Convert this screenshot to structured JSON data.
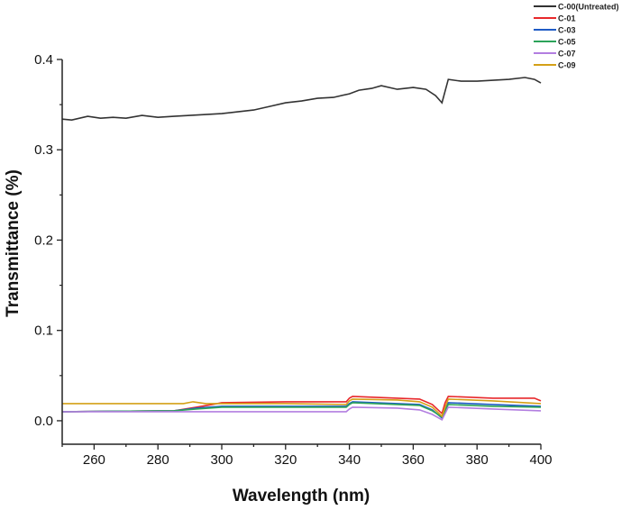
{
  "chart_data": {
    "type": "line",
    "title": "",
    "xlabel": "Wavelength (nm)",
    "ylabel": "Transmittance (%)",
    "xlim": [
      250,
      400
    ],
    "ylim": [
      -0.026,
      0.4
    ],
    "xticks": [
      260,
      280,
      300,
      320,
      340,
      360,
      380,
      400
    ],
    "yticks": [
      0.0,
      0.1,
      0.2,
      0.3,
      0.4
    ],
    "ytick_labels": [
      "0.0",
      "0.1",
      "0.2",
      "0.3",
      "0.4"
    ],
    "grid": false,
    "legend_position": "top-right",
    "series": [
      {
        "name": "C-00(Untreated)",
        "color": "#333333",
        "x": [
          250,
          253,
          258,
          262,
          266,
          270,
          275,
          280,
          285,
          290,
          295,
          300,
          305,
          310,
          315,
          320,
          325,
          330,
          335,
          340,
          343,
          347,
          350,
          355,
          360,
          364,
          367,
          369,
          370,
          371,
          375,
          380,
          385,
          390,
          395,
          398,
          400
        ],
        "y": [
          0.334,
          0.333,
          0.337,
          0.335,
          0.336,
          0.335,
          0.338,
          0.336,
          0.337,
          0.338,
          0.339,
          0.34,
          0.342,
          0.344,
          0.348,
          0.352,
          0.354,
          0.357,
          0.358,
          0.362,
          0.366,
          0.368,
          0.371,
          0.367,
          0.369,
          0.367,
          0.36,
          0.352,
          0.365,
          0.378,
          0.376,
          0.376,
          0.377,
          0.378,
          0.38,
          0.378,
          0.374
        ]
      },
      {
        "name": "C-01",
        "color": "#e8282b",
        "x": [
          250,
          285,
          292,
          297,
          300,
          320,
          339,
          340,
          341,
          355,
          362,
          366,
          369,
          370,
          371,
          385,
          398,
          400
        ],
        "y": [
          0.01,
          0.011,
          0.015,
          0.018,
          0.02,
          0.021,
          0.021,
          0.025,
          0.027,
          0.025,
          0.024,
          0.018,
          0.008,
          0.02,
          0.027,
          0.025,
          0.025,
          0.022
        ]
      },
      {
        "name": "C-03",
        "color": "#1f5bc6",
        "x": [
          250,
          285,
          292,
          300,
          320,
          339,
          340,
          341,
          355,
          362,
          366,
          369,
          370,
          371,
          385,
          400
        ],
        "y": [
          0.01,
          0.011,
          0.014,
          0.016,
          0.016,
          0.016,
          0.019,
          0.021,
          0.019,
          0.018,
          0.012,
          0.003,
          0.012,
          0.02,
          0.018,
          0.016
        ]
      },
      {
        "name": "C-05",
        "color": "#2ca35a",
        "x": [
          250,
          285,
          292,
          300,
          320,
          339,
          340,
          341,
          355,
          362,
          366,
          369,
          370,
          371,
          385,
          400
        ],
        "y": [
          0.01,
          0.011,
          0.013,
          0.015,
          0.015,
          0.015,
          0.018,
          0.02,
          0.018,
          0.017,
          0.011,
          0.004,
          0.011,
          0.018,
          0.016,
          0.015
        ]
      },
      {
        "name": "C-07",
        "color": "#b27ee0",
        "x": [
          250,
          300,
          339,
          340,
          341,
          355,
          362,
          366,
          369,
          370,
          371,
          385,
          400
        ],
        "y": [
          0.01,
          0.01,
          0.01,
          0.013,
          0.015,
          0.014,
          0.012,
          0.007,
          0.001,
          0.008,
          0.015,
          0.013,
          0.011
        ]
      },
      {
        "name": "C-09",
        "color": "#d4a017",
        "x": [
          250,
          288,
          291,
          295,
          300,
          320,
          339,
          340,
          341,
          355,
          362,
          366,
          369,
          370,
          371,
          385,
          400
        ],
        "y": [
          0.019,
          0.019,
          0.021,
          0.019,
          0.019,
          0.019,
          0.018,
          0.022,
          0.024,
          0.023,
          0.021,
          0.015,
          0.005,
          0.015,
          0.024,
          0.022,
          0.019
        ]
      }
    ]
  }
}
